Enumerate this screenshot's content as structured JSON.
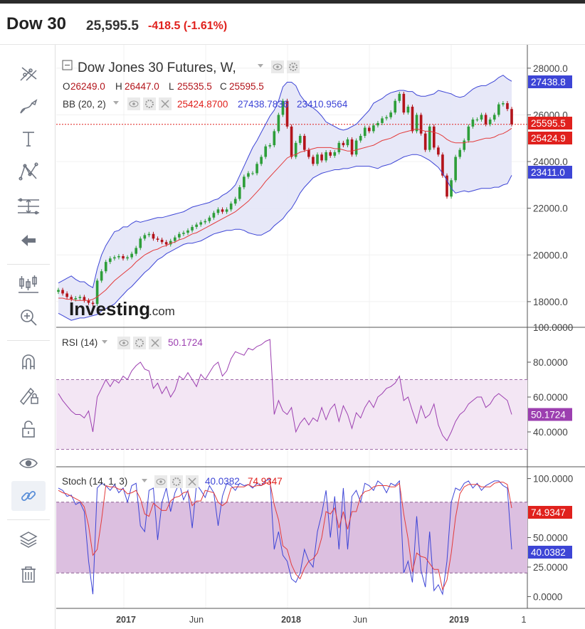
{
  "header": {
    "symbol": "Dow 30",
    "price": "25,595.5",
    "change": "-418.5 (-1.61%)"
  },
  "toolbar": {
    "tools": [
      "crosshair-tool-icon",
      "brush-tool-icon",
      "text-tool-icon",
      "pattern-tool-icon",
      "measure-tool-icon",
      "back-arrow-icon",
      "chart-type-icon",
      "zoom-in-icon",
      "magnet-icon",
      "lock-drawing-icon",
      "unlock-icon",
      "visibility-eye-icon",
      "link-icon",
      "layers-icon",
      "trash-icon"
    ]
  },
  "legend": {
    "instrument": "Dow Jones 30 Futures, W,",
    "ohlc": {
      "o_label": "O",
      "o": "26249.0",
      "h_label": "H",
      "h": "26447.0",
      "l_label": "L",
      "l": "25535.5",
      "c_label": "C",
      "c": "25595.5"
    },
    "bb": {
      "label": "BB (20, 2)",
      "mid": "25424.8700",
      "upper": "27438.7836",
      "lower": "23410.9564"
    },
    "rsi": {
      "label": "RSI (14)",
      "value": "50.1724"
    },
    "stoch": {
      "label": "Stoch (14, 1, 3)",
      "k": "40.0382",
      "d": "74.9347"
    }
  },
  "watermark": {
    "brand": "Investing",
    "suffix": ".com"
  },
  "price_axis": {
    "ticks": [
      "28000.0",
      "26000.0",
      "24000.0",
      "22000.0",
      "20000.0",
      "18000.0"
    ],
    "tags": {
      "upper": "27438.8",
      "last": "25595.5",
      "mid": "25424.9",
      "lower": "23411.0"
    }
  },
  "rsi_axis": {
    "ticks": [
      "100.0000",
      "80.0000",
      "60.0000",
      "40.0000"
    ],
    "tag": "50.1724"
  },
  "stoch_axis": {
    "ticks": [
      "100.0000",
      "50.0000",
      "25.0000",
      "0.0000"
    ],
    "tags": {
      "d": "74.9347",
      "k": "40.0382"
    }
  },
  "time_axis": {
    "labels": [
      "2017",
      "Jun",
      "2018",
      "Jun",
      "2019",
      "1"
    ]
  },
  "colors": {
    "up": "#2e9e3a",
    "down": "#b3141b",
    "bb_band": "#3d45d6",
    "bb_mid": "#e33b3b",
    "rsi": "#9c3fb0",
    "stoch_k": "#3d45d6",
    "stoch_d": "#e33b3b",
    "neg": "#e0211d"
  },
  "chart_data": [
    {
      "type": "candlestick",
      "title": "Dow Jones 30 Futures, W,",
      "ylim": [
        16900,
        29000
      ],
      "y_ticks": [
        18000,
        20000,
        22000,
        24000,
        26000,
        28000
      ],
      "closes": [
        18500,
        18350,
        18200,
        18100,
        18150,
        18200,
        18050,
        17950,
        17900,
        18900,
        19300,
        19700,
        19850,
        19900,
        19950,
        19850,
        19900,
        20050,
        20300,
        20700,
        20850,
        20900,
        20700,
        20650,
        20550,
        20450,
        20600,
        20750,
        20900,
        20950,
        21050,
        21200,
        21300,
        21400,
        21450,
        21600,
        21800,
        21950,
        21850,
        21950,
        22200,
        22400,
        22900,
        23350,
        23500,
        23500,
        23900,
        24200,
        24650,
        24700,
        25300,
        26000,
        26600,
        25500,
        24200,
        24800,
        25100,
        24500,
        24200,
        23900,
        24300,
        24050,
        24400,
        24250,
        24400,
        24800,
        24700,
        24950,
        24300,
        24900,
        25100,
        25450,
        25300,
        25550,
        25650,
        25850,
        25900,
        26100,
        26600,
        26900,
        26100,
        26350,
        25300,
        26000,
        25200,
        24500,
        25500,
        24600,
        24300,
        23400,
        22500,
        23200,
        24200,
        24500,
        24900,
        25500,
        25800,
        25800,
        26000,
        25600,
        25800,
        26000,
        26450,
        26500,
        26250,
        25595
      ],
      "bb_upper": [
        18800,
        18900,
        19000,
        19100,
        18950,
        18850,
        18850,
        18700,
        18600,
        19400,
        20000,
        20400,
        20700,
        21000,
        21050,
        21200,
        21200,
        21350,
        21450,
        21400,
        21450,
        21500,
        21550,
        21600,
        21600,
        21650,
        21700,
        21750,
        21800,
        21850,
        21950,
        22050,
        22100,
        22150,
        22200,
        22250,
        22350,
        22400,
        22550,
        22650,
        22800,
        23000,
        23400,
        23800,
        24200,
        24600,
        24900,
        25250,
        25600,
        25950,
        26200,
        26600,
        27200,
        27400,
        27400,
        27250,
        26850,
        26600,
        26400,
        26300,
        26150,
        25950,
        25700,
        25600,
        25500,
        25400,
        25350,
        25400,
        25500,
        25600,
        25800,
        26000,
        26200,
        26500,
        26600,
        26700,
        26850,
        26950,
        27000,
        27050,
        27050,
        27000,
        27000,
        26850,
        26800,
        26800,
        26850,
        26900,
        27050,
        27000,
        26950,
        26900,
        26800,
        26750,
        26800,
        26950,
        27100,
        27200,
        27250,
        27250,
        27350,
        27450,
        27600,
        27700,
        27550,
        27438
      ],
      "bb_mid": [
        18150,
        18150,
        18100,
        18100,
        18050,
        18050,
        18050,
        18050,
        18100,
        18200,
        18350,
        18500,
        18700,
        18900,
        19050,
        19200,
        19350,
        19500,
        19700,
        19850,
        20000,
        20100,
        20200,
        20250,
        20350,
        20400,
        20500,
        20550,
        20650,
        20700,
        20800,
        20900,
        20950,
        21050,
        21150,
        21250,
        21350,
        21450,
        21550,
        21650,
        21750,
        21850,
        22000,
        22150,
        22300,
        22500,
        22700,
        22900,
        23150,
        23350,
        23550,
        23750,
        23950,
        24150,
        24250,
        24300,
        24400,
        24450,
        24500,
        24550,
        24600,
        24600,
        24600,
        24600,
        24550,
        24550,
        24500,
        24450,
        24450,
        24500,
        24550,
        24600,
        24650,
        24700,
        24800,
        24900,
        24950,
        25000,
        25100,
        25200,
        25250,
        25300,
        25350,
        25400,
        25350,
        25300,
        25300,
        25250,
        25200,
        25100,
        24950,
        24850,
        24800,
        24800,
        24800,
        24850,
        24850,
        24900,
        24950,
        25000,
        25000,
        25050,
        25150,
        25200,
        25300,
        25425
      ],
      "bb_lower": [
        17500,
        17400,
        17300,
        17200,
        17250,
        17300,
        17300,
        17350,
        17400,
        17450,
        17600,
        17700,
        17800,
        17900,
        18100,
        18300,
        18500,
        18650,
        18850,
        19050,
        19250,
        19400,
        19600,
        19800,
        19900,
        20050,
        20150,
        20250,
        20350,
        20450,
        20500,
        20500,
        20550,
        20600,
        20700,
        20800,
        20900,
        20950,
        21000,
        21050,
        21050,
        21100,
        21100,
        21050,
        20950,
        20900,
        20850,
        20850,
        20950,
        21050,
        21250,
        21400,
        21550,
        21800,
        22000,
        22300,
        22650,
        22900,
        23100,
        23300,
        23400,
        23500,
        23550,
        23600,
        23650,
        23650,
        23700,
        23700,
        23750,
        23800,
        23800,
        23800,
        23800,
        23750,
        23700,
        23800,
        23850,
        23900,
        24000,
        24100,
        24200,
        24250,
        24300,
        24300,
        24250,
        24150,
        24050,
        23900,
        23750,
        23500,
        23200,
        22850,
        22650,
        22700,
        22750,
        22700,
        22750,
        22800,
        22850,
        22850,
        22850,
        22900,
        22900,
        23000,
        23050,
        23411
      ]
    },
    {
      "type": "line",
      "title": "RSI (14)",
      "ylim": [
        20,
        100
      ],
      "y_ticks": [
        40,
        60,
        80,
        100
      ],
      "band": [
        30,
        70
      ],
      "values": [
        62,
        58,
        55,
        52,
        50,
        50,
        48,
        52,
        40,
        60,
        65,
        70,
        66,
        70,
        68,
        72,
        70,
        75,
        78,
        80,
        76,
        75,
        65,
        68,
        62,
        66,
        60,
        64,
        72,
        70,
        74,
        70,
        66,
        73,
        70,
        74,
        78,
        80,
        72,
        75,
        82,
        86,
        85,
        84,
        88,
        87,
        89,
        90,
        92,
        93,
        50,
        58,
        52,
        50,
        54,
        40,
        45,
        48,
        44,
        48,
        46,
        54,
        47,
        53,
        56,
        46,
        55,
        50,
        42,
        51,
        48,
        54,
        58,
        54,
        60,
        62,
        65,
        66,
        68,
        72,
        58,
        60,
        52,
        45,
        55,
        48,
        50,
        56,
        44,
        38,
        35,
        40,
        46,
        50,
        52,
        56,
        58,
        60,
        60,
        54,
        56,
        60,
        62,
        60,
        58,
        50
      ]
    },
    {
      "type": "line",
      "title": "Stoch (14, 1, 3)",
      "ylim": [
        -10,
        110
      ],
      "y_ticks": [
        0,
        25,
        50,
        100
      ],
      "band": [
        20,
        80
      ],
      "series": [
        {
          "name": "%K",
          "values": [
            92,
            90,
            85,
            86,
            78,
            80,
            72,
            30,
            2,
            92,
            96,
            94,
            90,
            95,
            88,
            92,
            80,
            94,
            96,
            60,
            55,
            90,
            92,
            48,
            80,
            92,
            72,
            88,
            96,
            82,
            90,
            58,
            95,
            90,
            84,
            94,
            88,
            60,
            85,
            96,
            94,
            90,
            96,
            94,
            95,
            92,
            96,
            94,
            98,
            100,
            40,
            55,
            35,
            30,
            15,
            12,
            20,
            40,
            30,
            25,
            55,
            70,
            90,
            50,
            85,
            40,
            92,
            40,
            85,
            90,
            80,
            96,
            94,
            90,
            98,
            95,
            88,
            96,
            94,
            98,
            20,
            30,
            12,
            68,
            22,
            8,
            55,
            5,
            10,
            2,
            30,
            80,
            92,
            90,
            96,
            98,
            92,
            96,
            90,
            94,
            96,
            98,
            98,
            94,
            92,
            40
          ]
        },
        {
          "name": "%D",
          "values": [
            90,
            88,
            87,
            85,
            83,
            81,
            76,
            60,
            35,
            40,
            65,
            94,
            93,
            93,
            91,
            91,
            87,
            88,
            90,
            83,
            70,
            68,
            79,
            76,
            73,
            73,
            81,
            84,
            85,
            88,
            89,
            77,
            81,
            81,
            90,
            89,
            88,
            80,
            77,
            80,
            92,
            93,
            93,
            93,
            95,
            93,
            94,
            94,
            96,
            97,
            78,
            65,
            43,
            40,
            27,
            19,
            15,
            24,
            30,
            32,
            37,
            50,
            72,
            70,
            75,
            58,
            72,
            57,
            72,
            72,
            85,
            89,
            90,
            93,
            94,
            94,
            94,
            93,
            93,
            96,
            70,
            49,
            21,
            37,
            34,
            33,
            28,
            23,
            23,
            6,
            14,
            37,
            67,
            87,
            93,
            95,
            95,
            95,
            93,
            93,
            93,
            96,
            97,
            97,
            95,
            75
          ]
        }
      ]
    }
  ]
}
